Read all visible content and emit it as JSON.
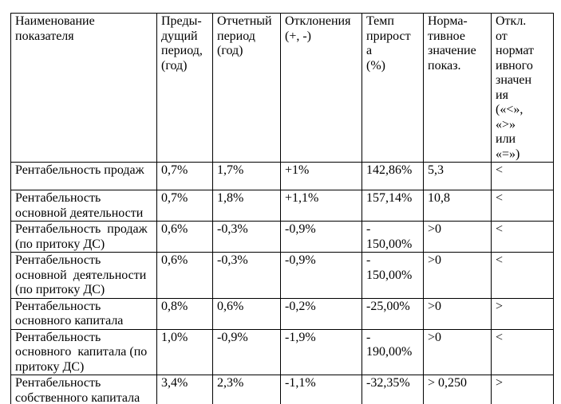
{
  "table": {
    "title": "Profitability indicators comparison table",
    "headers": [
      "Наименование\nпоказателя",
      "Преды-\nдущий\nпериод,\n(год)",
      "Отчетный\nпериод\n(год)",
      "Отклонения\n(+, -)",
      "Темп\nприрост\nа\n(%)",
      "Норма-\nтивное\nзначение\nпоказ.",
      "Откл.\nот\nнормат\nивного\nзначен\nия\n(«<»,\n«>»\nили\n«=»)"
    ],
    "rows": [
      {
        "cells": [
          "Рентабельность продаж",
          "0,7%",
          "1,7%",
          "+1%",
          "142,86%",
          "5,3",
          "<"
        ]
      },
      {
        "cells": [
          "Рентабельность\nосновной деятельности",
          "0,7%",
          "1,8%",
          "+1,1%",
          "157,14%",
          "10,8",
          "<"
        ]
      },
      {
        "cells": [
          "Рентабельность  продаж\n(по притоку ДС)",
          "0,6%",
          "-0,3%",
          "-0,9%",
          "-\n150,00%",
          ">0",
          "<"
        ]
      },
      {
        "cells": [
          "Рентабельность\nосновной  деятельности\n(по притоку ДС)",
          "0,6%",
          "-0,3%",
          "-0,9%",
          "-\n150,00%",
          ">0",
          "<"
        ]
      },
      {
        "cells": [
          "Рентабельность\nосновного капитала",
          "0,8%",
          "0,6%",
          "-0,2%",
          "-25,00%",
          ">0",
          ">"
        ]
      },
      {
        "cells": [
          "Рентабельность\nосновного  капитала (по\nпритоку ДС)",
          "1,0%",
          "-0,9%",
          "-1,9%",
          "-\n190,00%",
          ">0",
          "<"
        ]
      },
      {
        "cells": [
          "Рентабельность\nсобственного капитала",
          "3,4%",
          "2,3%",
          "-1,1%",
          "-32,35%",
          "> 0,250",
          ">"
        ]
      }
    ]
  }
}
